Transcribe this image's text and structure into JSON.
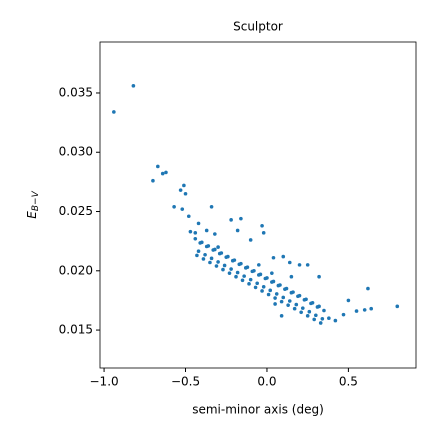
{
  "chart_data": {
    "type": "scatter",
    "title": "Sculptor",
    "xlabel": "semi-minor axis (deg)",
    "ylabel": "E",
    "ylabel_sub": "B−V",
    "color": "#1f77b4",
    "xlim": [
      -1.025,
      0.915
    ],
    "ylim": [
      0.0118,
      0.0393
    ],
    "xticks": [
      {
        "value": -1.0,
        "label": "−1.0"
      },
      {
        "value": -0.5,
        "label": "−0.5"
      },
      {
        "value": 0.0,
        "label": "0.0"
      },
      {
        "value": 0.5,
        "label": "0.5"
      }
    ],
    "yticks": [
      0.015,
      {
        "value": 0.02,
        "label": "0.020"
      },
      0.025,
      {
        "value": 0.03,
        "label": "0.030"
      },
      0.035
    ],
    "x": [
      -0.44,
      -0.42,
      -0.4,
      -0.38,
      -0.36,
      -0.34,
      -0.32,
      -0.3,
      -0.28,
      -0.26,
      -0.24,
      -0.22,
      -0.2,
      -0.18,
      -0.16,
      -0.14,
      -0.12,
      -0.1,
      -0.08,
      -0.06,
      -0.04,
      -0.02,
      0.0,
      0.02,
      0.04,
      0.06,
      0.08,
      0.1,
      0.12,
      0.14,
      0.16,
      0.18,
      0.2,
      0.22,
      0.24,
      0.26,
      0.28,
      0.3,
      0.32,
      0.34,
      -0.43,
      -0.41,
      -0.39,
      -0.37,
      -0.35,
      -0.33,
      -0.31,
      -0.29,
      -0.27,
      -0.25,
      -0.23,
      -0.21,
      -0.19,
      -0.17,
      -0.15,
      -0.13,
      -0.11,
      -0.09,
      -0.07,
      -0.05,
      -0.03,
      -0.01,
      0.01,
      0.03,
      0.05,
      0.07,
      0.09,
      0.11,
      0.13,
      0.15,
      0.17,
      0.19,
      0.21,
      0.23,
      0.25,
      0.27,
      0.29,
      0.31,
      0.33,
      0.35,
      -0.94,
      -0.82,
      -0.7,
      -0.67,
      -0.64,
      -0.62,
      -0.57,
      -0.53,
      -0.51,
      -0.5,
      -0.52,
      -0.48,
      -0.47,
      -0.44,
      -0.42,
      -0.37,
      -0.34,
      -0.32,
      -0.3,
      -0.22,
      -0.18,
      -0.16,
      -0.1,
      -0.03,
      -0.02,
      0.04,
      0.1,
      0.14,
      0.2,
      0.25,
      0.32,
      0.47,
      0.5,
      0.55,
      0.6,
      0.62,
      0.64,
      0.8,
      0.38,
      0.42,
      0.05,
      0.03,
      -0.05,
      0.15,
      0.09
    ],
    "values": [
      0.0227,
      0.02165,
      0.0224,
      0.02135,
      0.0221,
      0.02105,
      0.0218,
      0.02075,
      0.0215,
      0.02045,
      0.0212,
      0.02015,
      0.0209,
      0.01985,
      0.0206,
      0.01955,
      0.0203,
      0.01925,
      0.02,
      0.01895,
      0.0197,
      0.01865,
      0.0194,
      0.01835,
      0.0191,
      0.01805,
      0.0188,
      0.01775,
      0.0185,
      0.01745,
      0.0182,
      0.01715,
      0.0179,
      0.01685,
      0.0176,
      0.01655,
      0.0173,
      0.01625,
      0.017,
      0.01595,
      0.0213,
      0.02235,
      0.021,
      0.02205,
      0.0207,
      0.02175,
      0.0204,
      0.02145,
      0.0201,
      0.02115,
      0.0198,
      0.02085,
      0.0195,
      0.02055,
      0.0192,
      0.02025,
      0.0189,
      0.01995,
      0.0186,
      0.01965,
      0.0183,
      0.01935,
      0.018,
      0.01905,
      0.0177,
      0.01875,
      0.0174,
      0.01845,
      0.0171,
      0.01815,
      0.0168,
      0.01785,
      0.0165,
      0.01755,
      0.0162,
      0.01725,
      0.0159,
      0.01695,
      0.0156,
      0.01665,
      0.0334,
      0.0356,
      0.0276,
      0.0288,
      0.0282,
      0.0283,
      0.0254,
      0.0268,
      0.0272,
      0.0265,
      0.0252,
      0.0246,
      0.0233,
      0.0232,
      0.024,
      0.0234,
      0.0254,
      0.0231,
      0.022,
      0.0243,
      0.0234,
      0.0244,
      0.0226,
      0.0238,
      0.0232,
      0.0211,
      0.0212,
      0.0207,
      0.0205,
      0.0205,
      0.0195,
      0.0163,
      0.0175,
      0.0166,
      0.0167,
      0.0185,
      0.0168,
      0.017,
      0.016,
      0.0158,
      0.0172,
      0.0198,
      0.0205,
      0.0195,
      0.0162
    ]
  }
}
